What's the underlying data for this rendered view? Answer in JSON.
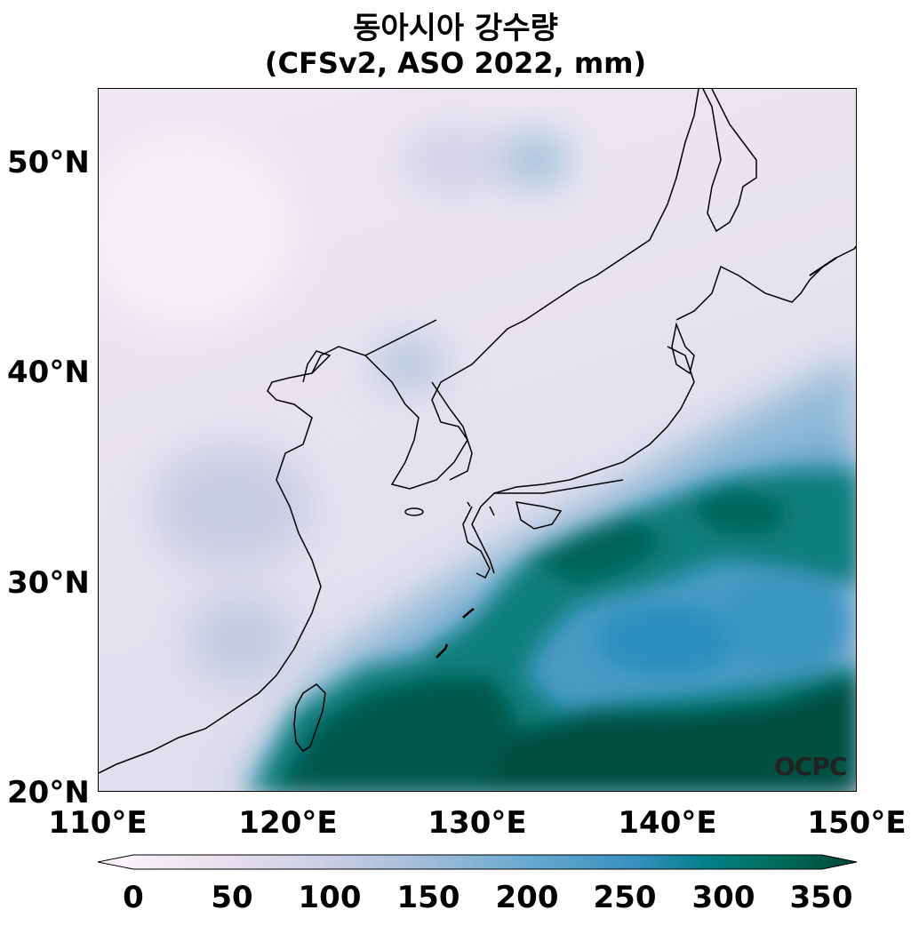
{
  "title": {
    "line1": "동아시아 강수량",
    "line2": "(CFSv2, ASO 2022, mm)"
  },
  "map": {
    "lat_labels": [
      "50°N",
      "40°N",
      "30°N",
      "20°N"
    ],
    "lon_labels": [
      "110°E",
      "120°E",
      "130°E",
      "140°E",
      "150°E"
    ],
    "lat_range": [
      20,
      53.5
    ],
    "lon_range": [
      110,
      150
    ],
    "watermark": "OCPC",
    "colormap": [
      "#fff7fb",
      "#ece2f0",
      "#d0d1e6",
      "#a6bddb",
      "#67a9cf",
      "#3690c0",
      "#02818a",
      "#016c59",
      "#014636"
    ]
  },
  "colorbar": {
    "ticks": [
      "0",
      "50",
      "100",
      "150",
      "200",
      "250",
      "300",
      "350"
    ],
    "min": 0,
    "max": 350
  }
}
